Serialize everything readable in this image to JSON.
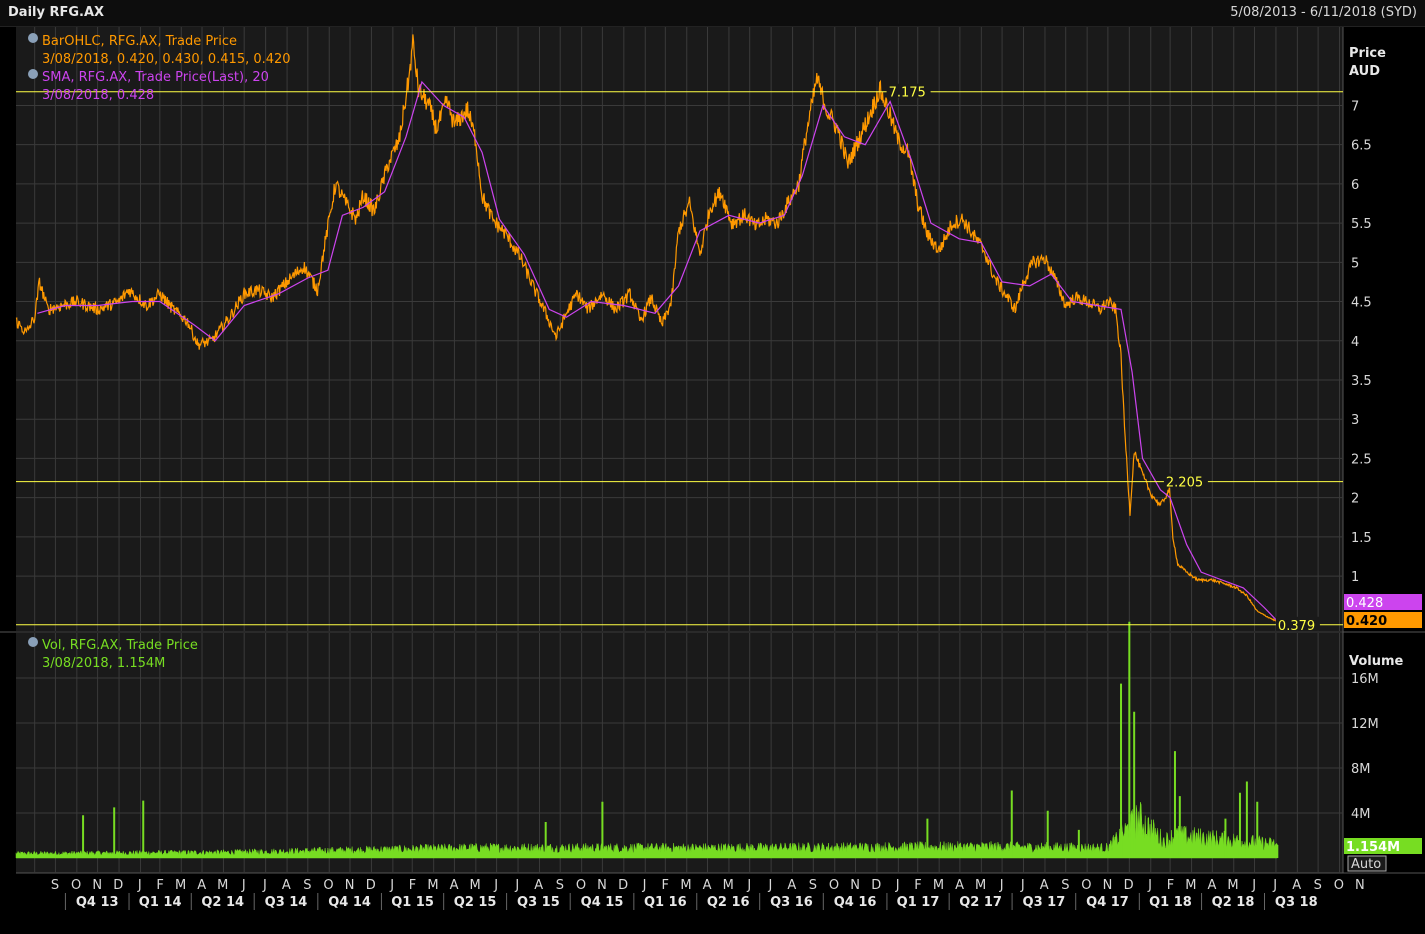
{
  "header": {
    "title": "Daily RFG.AX",
    "date_range": "5/08/2013 - 6/11/2018 (SYD)"
  },
  "colors": {
    "background": "#1a1a1a",
    "grid": "#3a3a3a",
    "price": "#ff9900",
    "sma": "#cc44ee",
    "volume": "#77dd22",
    "hline": "#ffff44"
  },
  "legend": {
    "price_name": "BarOHLC, RFG.AX, Trade Price",
    "price_values": "3/08/2018, 0.420, 0.430, 0.415, 0.420",
    "sma_name": "SMA, RFG.AX, Trade Price(Last),  20",
    "sma_values": "3/08/2018, 0.428",
    "vol_name": "Vol, RFG.AX, Trade Price",
    "vol_values": "3/08/2018, 1.154M"
  },
  "price_axis": {
    "title": "Price",
    "unit": "AUD"
  },
  "volume_axis": {
    "title": "Volume",
    "auto_label": "Auto"
  },
  "value_tags": {
    "sma": "0.428",
    "price": "0.420",
    "volume": "1.154M"
  },
  "chart_data": [
    {
      "type": "line",
      "ylabel": "Price AUD",
      "ylim": [
        0.3,
        8.0
      ],
      "y_ticks": [
        1,
        1.5,
        2,
        2.5,
        3,
        3.5,
        4,
        4.5,
        5,
        5.5,
        6,
        6.5,
        7
      ],
      "grid": true,
      "date_range": [
        "2013-08-05",
        "2018-11-06"
      ],
      "horizontal_lines": [
        {
          "value": 7.175,
          "label": "7.175",
          "label_date": "2017-01-15"
        },
        {
          "value": 2.205,
          "label": "2.205",
          "label_date": "2018-02-20"
        },
        {
          "value": 0.379,
          "label": "0.379",
          "label_date": "2018-08-01"
        }
      ],
      "series": [
        {
          "name": "BarOHLC, RFG.AX, Trade Price",
          "points": [
            [
              "2013-08-05",
              4.25
            ],
            [
              "2013-08-20",
              4.1
            ],
            [
              "2013-09-01",
              4.3
            ],
            [
              "2013-09-08",
              4.75
            ],
            [
              "2013-09-20",
              4.4
            ],
            [
              "2013-10-10",
              4.45
            ],
            [
              "2013-11-01",
              4.5
            ],
            [
              "2013-12-01",
              4.4
            ],
            [
              "2014-01-01",
              4.5
            ],
            [
              "2014-01-15",
              4.65
            ],
            [
              "2014-02-10",
              4.45
            ],
            [
              "2014-03-01",
              4.6
            ],
            [
              "2014-03-20",
              4.4
            ],
            [
              "2014-04-10",
              4.25
            ],
            [
              "2014-04-25",
              3.95
            ],
            [
              "2014-05-15",
              4.0
            ],
            [
              "2014-06-10",
              4.3
            ],
            [
              "2014-07-01",
              4.6
            ],
            [
              "2014-07-20",
              4.65
            ],
            [
              "2014-08-10",
              4.55
            ],
            [
              "2014-09-01",
              4.75
            ],
            [
              "2014-09-25",
              4.95
            ],
            [
              "2014-10-15",
              4.65
            ],
            [
              "2014-10-25",
              5.2
            ],
            [
              "2014-11-10",
              6.0
            ],
            [
              "2014-11-25",
              5.75
            ],
            [
              "2014-12-10",
              5.55
            ],
            [
              "2014-12-20",
              5.85
            ],
            [
              "2015-01-05",
              5.65
            ],
            [
              "2015-01-25",
              6.25
            ],
            [
              "2015-02-10",
              6.55
            ],
            [
              "2015-02-25",
              7.4
            ],
            [
              "2015-03-02",
              7.8
            ],
            [
              "2015-03-10",
              7.2
            ],
            [
              "2015-03-25",
              7.0
            ],
            [
              "2015-04-05",
              6.7
            ],
            [
              "2015-04-20",
              7.05
            ],
            [
              "2015-05-01",
              6.75
            ],
            [
              "2015-05-20",
              6.95
            ],
            [
              "2015-06-01",
              6.55
            ],
            [
              "2015-06-10",
              5.85
            ],
            [
              "2015-06-25",
              5.55
            ],
            [
              "2015-07-15",
              5.35
            ],
            [
              "2015-08-05",
              5.05
            ],
            [
              "2015-08-25",
              4.65
            ],
            [
              "2015-09-10",
              4.35
            ],
            [
              "2015-09-25",
              4.05
            ],
            [
              "2015-10-10",
              4.35
            ],
            [
              "2015-10-25",
              4.6
            ],
            [
              "2015-11-10",
              4.4
            ],
            [
              "2015-12-01",
              4.6
            ],
            [
              "2015-12-20",
              4.4
            ],
            [
              "2016-01-10",
              4.6
            ],
            [
              "2016-01-25",
              4.25
            ],
            [
              "2016-02-10",
              4.55
            ],
            [
              "2016-02-25",
              4.2
            ],
            [
              "2016-03-10",
              4.5
            ],
            [
              "2016-03-20",
              5.4
            ],
            [
              "2016-04-05",
              5.75
            ],
            [
              "2016-04-20",
              5.1
            ],
            [
              "2016-05-05",
              5.7
            ],
            [
              "2016-05-20",
              5.9
            ],
            [
              "2016-06-05",
              5.5
            ],
            [
              "2016-06-25",
              5.6
            ],
            [
              "2016-07-10",
              5.45
            ],
            [
              "2016-07-25",
              5.55
            ],
            [
              "2016-08-10",
              5.5
            ],
            [
              "2016-08-25",
              5.75
            ],
            [
              "2016-09-10",
              6.0
            ],
            [
              "2016-09-20",
              6.6
            ],
            [
              "2016-10-01",
              7.1
            ],
            [
              "2016-10-06",
              7.35
            ],
            [
              "2016-10-20",
              6.95
            ],
            [
              "2016-11-05",
              6.7
            ],
            [
              "2016-11-20",
              6.25
            ],
            [
              "2016-12-05",
              6.55
            ],
            [
              "2016-12-20",
              6.85
            ],
            [
              "2017-01-05",
              7.2
            ],
            [
              "2017-01-15",
              7.0
            ],
            [
              "2017-02-01",
              6.55
            ],
            [
              "2017-02-15",
              6.4
            ],
            [
              "2017-03-01",
              5.75
            ],
            [
              "2017-03-15",
              5.35
            ],
            [
              "2017-04-01",
              5.15
            ],
            [
              "2017-04-20",
              5.5
            ],
            [
              "2017-05-05",
              5.55
            ],
            [
              "2017-05-20",
              5.35
            ],
            [
              "2017-06-05",
              5.15
            ],
            [
              "2017-06-20",
              4.8
            ],
            [
              "2017-07-05",
              4.6
            ],
            [
              "2017-07-20",
              4.4
            ],
            [
              "2017-08-01",
              4.75
            ],
            [
              "2017-08-15",
              5.0
            ],
            [
              "2017-09-01",
              5.05
            ],
            [
              "2017-09-15",
              4.8
            ],
            [
              "2017-10-01",
              4.45
            ],
            [
              "2017-10-15",
              4.55
            ],
            [
              "2017-11-01",
              4.5
            ],
            [
              "2017-11-20",
              4.4
            ],
            [
              "2017-12-01",
              4.5
            ],
            [
              "2017-12-12",
              4.4
            ],
            [
              "2017-12-20",
              3.8
            ],
            [
              "2017-12-25",
              2.9
            ],
            [
              "2018-01-02",
              1.8
            ],
            [
              "2018-01-08",
              2.6
            ],
            [
              "2018-01-20",
              2.3
            ],
            [
              "2018-02-01",
              2.05
            ],
            [
              "2018-02-15",
              1.9
            ],
            [
              "2018-02-28",
              2.1
            ],
            [
              "2018-03-05",
              1.5
            ],
            [
              "2018-03-12",
              1.15
            ],
            [
              "2018-03-25",
              1.05
            ],
            [
              "2018-04-10",
              0.95
            ],
            [
              "2018-05-01",
              0.95
            ],
            [
              "2018-05-20",
              0.9
            ],
            [
              "2018-06-05",
              0.85
            ],
            [
              "2018-06-20",
              0.75
            ],
            [
              "2018-07-05",
              0.55
            ],
            [
              "2018-07-20",
              0.48
            ],
            [
              "2018-08-03",
              0.42
            ]
          ]
        },
        {
          "name": "SMA, RFG.AX, Trade Price(Last),  20",
          "points": [
            [
              "2013-09-05",
              4.35
            ],
            [
              "2013-10-15",
              4.45
            ],
            [
              "2013-12-01",
              4.45
            ],
            [
              "2014-01-20",
              4.5
            ],
            [
              "2014-03-01",
              4.5
            ],
            [
              "2014-04-20",
              4.2
            ],
            [
              "2014-05-20",
              4.0
            ],
            [
              "2014-07-01",
              4.45
            ],
            [
              "2014-08-20",
              4.6
            ],
            [
              "2014-10-01",
              4.8
            ],
            [
              "2014-10-30",
              4.9
            ],
            [
              "2014-11-20",
              5.6
            ],
            [
              "2014-12-20",
              5.7
            ],
            [
              "2015-01-20",
              5.9
            ],
            [
              "2015-02-20",
              6.6
            ],
            [
              "2015-03-15",
              7.3
            ],
            [
              "2015-04-15",
              7.0
            ],
            [
              "2015-05-15",
              6.85
            ],
            [
              "2015-06-10",
              6.4
            ],
            [
              "2015-07-05",
              5.55
            ],
            [
              "2015-08-10",
              5.1
            ],
            [
              "2015-09-15",
              4.4
            ],
            [
              "2015-10-10",
              4.3
            ],
            [
              "2015-11-15",
              4.5
            ],
            [
              "2016-01-01",
              4.45
            ],
            [
              "2016-02-15",
              4.35
            ],
            [
              "2016-03-20",
              4.7
            ],
            [
              "2016-04-20",
              5.4
            ],
            [
              "2016-06-01",
              5.6
            ],
            [
              "2016-07-15",
              5.5
            ],
            [
              "2016-08-20",
              5.6
            ],
            [
              "2016-09-15",
              6.1
            ],
            [
              "2016-10-15",
              7.0
            ],
            [
              "2016-11-15",
              6.6
            ],
            [
              "2016-12-15",
              6.5
            ],
            [
              "2017-01-20",
              7.05
            ],
            [
              "2017-02-20",
              6.3
            ],
            [
              "2017-03-20",
              5.5
            ],
            [
              "2017-04-30",
              5.3
            ],
            [
              "2017-06-01",
              5.25
            ],
            [
              "2017-07-01",
              4.75
            ],
            [
              "2017-08-10",
              4.7
            ],
            [
              "2017-09-10",
              4.85
            ],
            [
              "2017-10-10",
              4.5
            ],
            [
              "2017-11-15",
              4.45
            ],
            [
              "2017-12-20",
              4.4
            ],
            [
              "2018-01-05",
              3.6
            ],
            [
              "2018-01-20",
              2.5
            ],
            [
              "2018-02-15",
              2.1
            ],
            [
              "2018-03-01",
              2.0
            ],
            [
              "2018-03-25",
              1.4
            ],
            [
              "2018-04-15",
              1.05
            ],
            [
              "2018-05-15",
              0.95
            ],
            [
              "2018-06-15",
              0.85
            ],
            [
              "2018-07-15",
              0.6
            ],
            [
              "2018-08-03",
              0.428
            ]
          ]
        }
      ]
    },
    {
      "type": "bar",
      "ylabel": "Volume",
      "ylim": [
        0,
        20000000
      ],
      "y_ticks": [
        "4M",
        "8M",
        "12M",
        "16M"
      ],
      "grid": true,
      "series": [
        {
          "name": "Vol, RFG.AX, Trade Price",
          "spikes": [
            [
              "2013-11-10",
              3800000
            ],
            [
              "2013-12-25",
              4500000
            ],
            [
              "2014-02-05",
              5100000
            ],
            [
              "2015-09-10",
              3200000
            ],
            [
              "2015-12-01",
              5000000
            ],
            [
              "2017-03-15",
              3500000
            ],
            [
              "2017-07-15",
              6000000
            ],
            [
              "2017-09-05",
              4200000
            ],
            [
              "2017-10-20",
              2500000
            ],
            [
              "2017-12-20",
              15500000
            ],
            [
              "2018-01-01",
              21000000
            ],
            [
              "2018-01-08",
              13000000
            ],
            [
              "2018-03-08",
              9500000
            ],
            [
              "2018-03-15",
              5500000
            ],
            [
              "2018-05-20",
              3500000
            ],
            [
              "2018-06-10",
              5800000
            ],
            [
              "2018-06-20",
              6800000
            ],
            [
              "2018-07-05",
              5000000
            ],
            [
              "2018-08-03",
              1154000
            ]
          ],
          "baseline_levels": [
            [
              "2013-08-05",
              400000
            ],
            [
              "2014-06-01",
              500000
            ],
            [
              "2015-06-01",
              900000
            ],
            [
              "2016-06-01",
              900000
            ],
            [
              "2017-06-01",
              1000000
            ],
            [
              "2017-12-01",
              900000
            ],
            [
              "2018-01-15",
              3500000
            ],
            [
              "2018-02-20",
              1500000
            ],
            [
              "2018-03-10",
              2000000
            ],
            [
              "2018-08-03",
              1200000
            ]
          ]
        }
      ]
    }
  ],
  "x_axis": {
    "months": [
      "S",
      "O",
      "N",
      "D",
      "J",
      "F",
      "M",
      "A",
      "M",
      "J",
      "J",
      "A",
      "S",
      "O",
      "N",
      "D",
      "J",
      "F",
      "M",
      "A",
      "M",
      "J",
      "J",
      "A",
      "S",
      "O",
      "N",
      "D",
      "J",
      "F",
      "M",
      "A",
      "M",
      "J",
      "J",
      "A",
      "S",
      "O",
      "N",
      "D",
      "J",
      "F",
      "M",
      "A",
      "M",
      "J",
      "J",
      "A",
      "S",
      "O",
      "N",
      "D",
      "J",
      "F",
      "M",
      "A",
      "M",
      "J",
      "J",
      "A",
      "S",
      "O",
      "N"
    ],
    "quarters": [
      "Q4 13",
      "Q1 14",
      "Q2 14",
      "Q3 14",
      "Q4 14",
      "Q1 15",
      "Q2 15",
      "Q3 15",
      "Q4 15",
      "Q1 16",
      "Q2 16",
      "Q3 16",
      "Q4 16",
      "Q1 17",
      "Q2 17",
      "Q3 17",
      "Q4 17",
      "Q1 18",
      "Q2 18",
      "Q3 18"
    ]
  }
}
